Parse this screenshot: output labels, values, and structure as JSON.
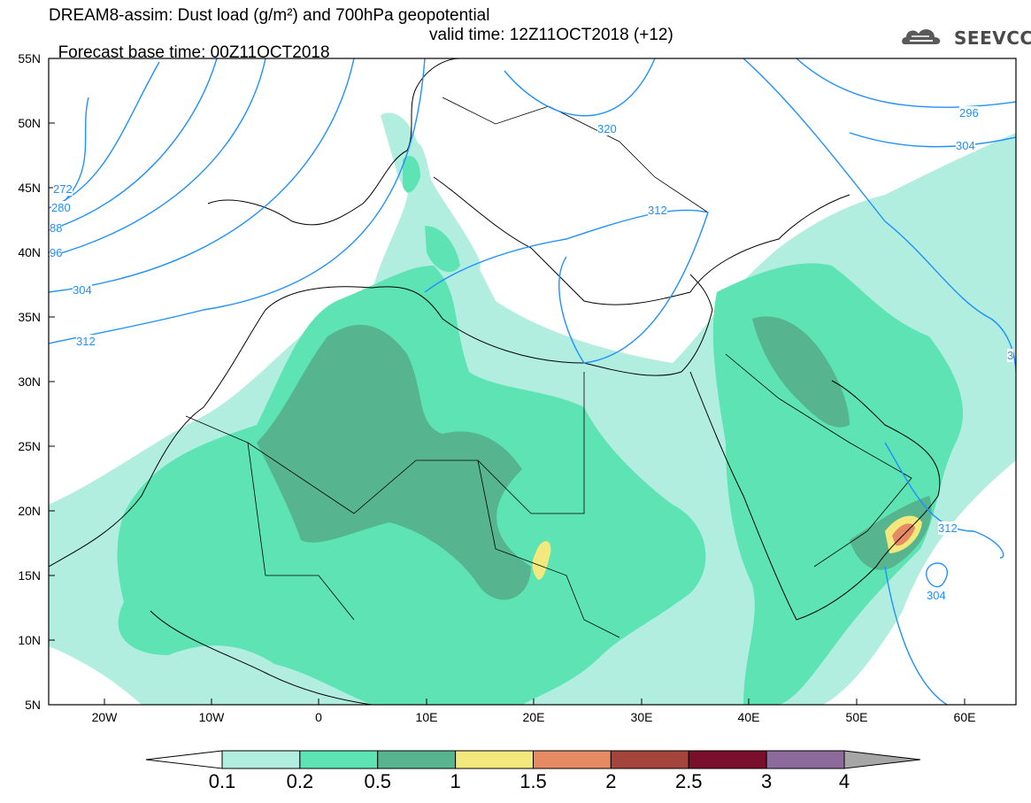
{
  "title": {
    "line1": "DREAM8-assim: Dust load (g/m²) and 700hPa geopotential",
    "line2_base": "Forecast base time: 00Z11OCT2018",
    "line2_valid": "valid time: 12Z11OCT2018 (+12)"
  },
  "logo": {
    "text": "SEEVCCC",
    "icon": "cloud-logo-icon"
  },
  "map": {
    "lat_labels": [
      "55N",
      "50N",
      "45N",
      "40N",
      "35N",
      "30N",
      "25N",
      "20N",
      "15N",
      "10N",
      "5N"
    ],
    "lon_labels": [
      "20W",
      "10W",
      "0",
      "10E",
      "20E",
      "30E",
      "40E",
      "50E",
      "60E"
    ],
    "contour_labels": [
      "272",
      "280",
      "88",
      "96",
      "304",
      "312",
      "320",
      "312",
      "296",
      "304",
      "312",
      "304",
      "3"
    ],
    "contour_color": "#1e90ff"
  },
  "colorbar": {
    "levels": [
      "0.1",
      "0.2",
      "0.5",
      "1",
      "1.5",
      "2",
      "2.5",
      "3",
      "4"
    ],
    "colors": [
      "#ffffff",
      "#b2eee0",
      "#5de3b4",
      "#56b58e",
      "#f2e87c",
      "#e58a62",
      "#a4443a",
      "#7a0f2c",
      "#8d6a9c",
      "#a6a6a6"
    ]
  }
}
